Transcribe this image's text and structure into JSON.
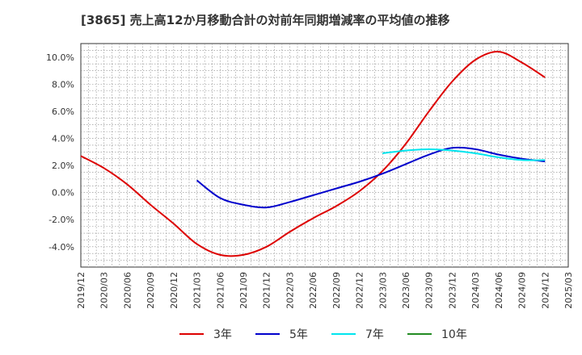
{
  "chart_data": {
    "type": "line",
    "title": "[3865]  売上高12か月移動合計の対前年同期増減率の平均値の推移",
    "xlabel": "",
    "ylabel": "",
    "x_ticks": [
      "2019/12",
      "2020/03",
      "2020/06",
      "2020/09",
      "2020/12",
      "2021/03",
      "2021/06",
      "2021/09",
      "2021/12",
      "2022/03",
      "2022/06",
      "2022/09",
      "2022/12",
      "2023/03",
      "2023/06",
      "2023/09",
      "2023/12",
      "2024/03",
      "2024/06",
      "2024/09",
      "2024/12",
      "2025/03"
    ],
    "y_ticks": [
      "-4.0%",
      "-2.0%",
      "0.0%",
      "2.0%",
      "4.0%",
      "6.0%",
      "8.0%",
      "10.0%"
    ],
    "ylim": [
      -5.5,
      11.0
    ],
    "grid": true,
    "legend_position": "bottom",
    "series": [
      {
        "name": "3年",
        "color": "#dd0000",
        "x": [
          "2019/12",
          "2020/03",
          "2020/06",
          "2020/09",
          "2020/12",
          "2021/03",
          "2021/06",
          "2021/09",
          "2021/12",
          "2022/03",
          "2022/06",
          "2022/09",
          "2022/12",
          "2023/03",
          "2023/06",
          "2023/09",
          "2023/12",
          "2024/03",
          "2024/06",
          "2024/09",
          "2024/12"
        ],
        "values": [
          2.7,
          1.8,
          0.6,
          -0.9,
          -2.3,
          -3.8,
          -4.6,
          -4.6,
          -4.0,
          -2.9,
          -1.9,
          -1.0,
          0.1,
          1.6,
          3.6,
          6.0,
          8.2,
          9.8,
          10.4,
          9.6,
          8.5
        ]
      },
      {
        "name": "5年",
        "color": "#0000cc",
        "x": [
          "2021/03",
          "2021/06",
          "2021/09",
          "2021/12",
          "2022/03",
          "2022/06",
          "2022/09",
          "2022/12",
          "2023/03",
          "2023/06",
          "2023/09",
          "2023/12",
          "2024/03",
          "2024/06",
          "2024/09",
          "2024/12"
        ],
        "values": [
          0.9,
          -0.4,
          -0.9,
          -1.1,
          -0.7,
          -0.2,
          0.3,
          0.8,
          1.4,
          2.1,
          2.8,
          3.3,
          3.2,
          2.8,
          2.5,
          2.3
        ]
      },
      {
        "name": "7年",
        "color": "#00e5ee",
        "x": [
          "2023/03",
          "2023/06",
          "2023/09",
          "2023/12",
          "2024/03",
          "2024/06",
          "2024/09",
          "2024/12"
        ],
        "values": [
          2.9,
          3.1,
          3.2,
          3.1,
          2.9,
          2.6,
          2.4,
          2.4
        ]
      },
      {
        "name": "10年",
        "color": "#228b22",
        "x": [],
        "values": []
      }
    ]
  }
}
